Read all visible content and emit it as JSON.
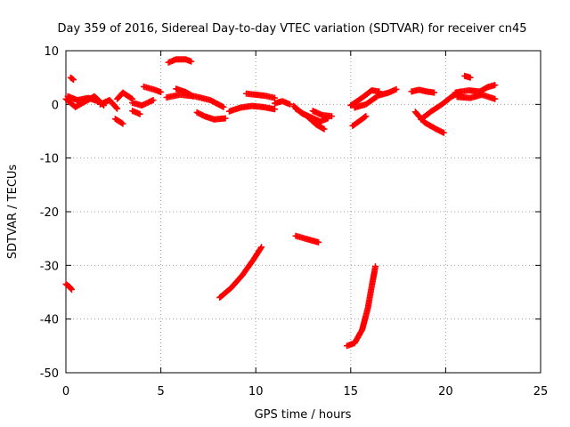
{
  "chart_data": {
    "type": "scatter",
    "title": "Day 359 of 2016, Sidereal Day-to-day VTEC variation (SDTVAR) for receiver cn45",
    "xlabel": "GPS time / hours",
    "ylabel": "SDTVAR / TECUs",
    "xlim": [
      0,
      25
    ],
    "ylim": [
      -50,
      10
    ],
    "xticks": [
      0,
      5,
      10,
      15,
      20,
      25
    ],
    "yticks": [
      10,
      0,
      -10,
      -20,
      -30,
      -40,
      -50
    ],
    "grid": true,
    "marker": "plus",
    "color": "#ff0000",
    "segments": [
      {
        "name": "s01",
        "points": [
          [
            0.0,
            1.0
          ],
          [
            0.5,
            -0.5
          ],
          [
            1.0,
            0.5
          ],
          [
            1.5,
            1.5
          ],
          [
            2.0,
            -0.2
          ]
        ]
      },
      {
        "name": "s02",
        "points": [
          [
            0.1,
            1.5
          ],
          [
            0.6,
            0.8
          ],
          [
            1.2,
            1.2
          ],
          [
            1.8,
            0.4
          ]
        ]
      },
      {
        "name": "s03",
        "points": [
          [
            0.25,
            5.0
          ],
          [
            0.4,
            4.6
          ]
        ]
      },
      {
        "name": "s04",
        "points": [
          [
            1.8,
            0.0
          ],
          [
            2.3,
            0.8
          ],
          [
            2.7,
            -0.8
          ]
        ]
      },
      {
        "name": "s05",
        "points": [
          [
            2.6,
            -2.7
          ],
          [
            3.0,
            -3.6
          ]
        ]
      },
      {
        "name": "s06",
        "points": [
          [
            2.7,
            1.0
          ],
          [
            3.0,
            2.2
          ],
          [
            3.5,
            1.0
          ]
        ]
      },
      {
        "name": "s07",
        "points": [
          [
            3.5,
            0.3
          ],
          [
            4.0,
            -0.2
          ],
          [
            4.6,
            0.8
          ]
        ]
      },
      {
        "name": "s08",
        "points": [
          [
            3.5,
            -1.2
          ],
          [
            3.9,
            -1.8
          ]
        ]
      },
      {
        "name": "s09",
        "points": [
          [
            4.1,
            3.3
          ],
          [
            4.6,
            2.8
          ],
          [
            5.0,
            2.3
          ]
        ]
      },
      {
        "name": "s10",
        "points": [
          [
            5.3,
            1.3
          ],
          [
            6.0,
            1.8
          ],
          [
            6.8,
            1.5
          ],
          [
            7.6,
            0.8
          ],
          [
            8.3,
            -0.5
          ]
        ]
      },
      {
        "name": "s11",
        "points": [
          [
            5.4,
            7.8
          ],
          [
            5.8,
            8.4
          ],
          [
            6.3,
            8.4
          ],
          [
            6.6,
            8.0
          ]
        ]
      },
      {
        "name": "s12",
        "points": [
          [
            5.8,
            2.9
          ],
          [
            6.3,
            2.3
          ],
          [
            6.7,
            1.5
          ]
        ]
      },
      {
        "name": "s13",
        "points": [
          [
            6.9,
            -1.5
          ],
          [
            7.3,
            -2.2
          ],
          [
            7.8,
            -2.8
          ],
          [
            8.4,
            -2.6
          ]
        ]
      },
      {
        "name": "s14",
        "points": [
          [
            8.6,
            -1.3
          ],
          [
            9.2,
            -0.6
          ],
          [
            9.8,
            -0.3
          ],
          [
            10.4,
            -0.5
          ],
          [
            11.0,
            -0.9
          ]
        ]
      },
      {
        "name": "s15",
        "points": [
          [
            9.5,
            2.0
          ],
          [
            10.0,
            1.8
          ],
          [
            10.5,
            1.6
          ],
          [
            11.0,
            1.2
          ]
        ]
      },
      {
        "name": "s16",
        "points": [
          [
            11.0,
            0.2
          ],
          [
            11.4,
            0.6
          ],
          [
            11.8,
            0.0
          ]
        ]
      },
      {
        "name": "s17",
        "points": [
          [
            12.0,
            -0.3
          ],
          [
            12.4,
            -1.6
          ],
          [
            12.9,
            -2.4
          ],
          [
            13.4,
            -3.2
          ],
          [
            13.8,
            -2.6
          ]
        ]
      },
      {
        "name": "s18",
        "points": [
          [
            12.1,
            -0.8
          ],
          [
            12.7,
            -2.2
          ],
          [
            13.2,
            -3.8
          ],
          [
            13.6,
            -4.6
          ]
        ]
      },
      {
        "name": "s19",
        "points": [
          [
            13.0,
            -1.2
          ],
          [
            13.5,
            -2.0
          ],
          [
            14.0,
            -2.2
          ]
        ]
      },
      {
        "name": "s20",
        "points": [
          [
            15.0,
            -0.2
          ],
          [
            15.3,
            0.5
          ],
          [
            15.7,
            1.5
          ],
          [
            16.1,
            2.6
          ],
          [
            16.5,
            2.4
          ]
        ]
      },
      {
        "name": "s21",
        "points": [
          [
            15.2,
            -0.6
          ],
          [
            15.8,
            0.0
          ],
          [
            16.4,
            1.5
          ]
        ]
      },
      {
        "name": "s22",
        "points": [
          [
            15.1,
            -4.0
          ],
          [
            15.5,
            -3.0
          ],
          [
            15.8,
            -2.2
          ]
        ]
      },
      {
        "name": "s23",
        "points": [
          [
            16.4,
            1.6
          ],
          [
            17.0,
            2.2
          ],
          [
            17.4,
            2.8
          ]
        ]
      },
      {
        "name": "s24",
        "points": [
          [
            18.2,
            2.4
          ],
          [
            18.6,
            2.7
          ],
          [
            19.0,
            2.4
          ],
          [
            19.4,
            2.2
          ]
        ]
      },
      {
        "name": "s25",
        "points": [
          [
            18.4,
            -1.4
          ],
          [
            18.9,
            -3.4
          ],
          [
            19.5,
            -4.6
          ],
          [
            19.9,
            -5.3
          ]
        ]
      },
      {
        "name": "s26",
        "points": [
          [
            18.7,
            -2.8
          ],
          [
            19.2,
            -1.4
          ],
          [
            19.8,
            0.0
          ],
          [
            20.3,
            1.4
          ],
          [
            20.8,
            2.4
          ]
        ]
      },
      {
        "name": "s27",
        "points": [
          [
            21.0,
            5.3
          ],
          [
            21.3,
            5.0
          ]
        ]
      },
      {
        "name": "s28",
        "points": [
          [
            20.5,
            2.2
          ],
          [
            21.2,
            2.6
          ],
          [
            21.8,
            2.4
          ],
          [
            22.2,
            3.2
          ],
          [
            22.6,
            3.6
          ]
        ]
      },
      {
        "name": "s29",
        "points": [
          [
            20.6,
            1.4
          ],
          [
            21.3,
            1.2
          ],
          [
            21.9,
            1.8
          ],
          [
            22.6,
            1.0
          ]
        ]
      },
      {
        "name": "s30",
        "points": [
          [
            0.0,
            -33.5
          ],
          [
            0.2,
            -34.0
          ],
          [
            0.3,
            -34.5
          ]
        ]
      },
      {
        "name": "s31",
        "points": [
          [
            8.1,
            -36.0
          ],
          [
            8.7,
            -34.2
          ],
          [
            9.3,
            -31.8
          ],
          [
            9.9,
            -28.8
          ],
          [
            10.3,
            -26.6
          ]
        ]
      },
      {
        "name": "s32",
        "points": [
          [
            12.1,
            -24.5
          ],
          [
            12.6,
            -25.0
          ],
          [
            13.0,
            -25.4
          ],
          [
            13.3,
            -25.7
          ]
        ]
      },
      {
        "name": "s33",
        "points": [
          [
            14.8,
            -45.0
          ],
          [
            15.2,
            -44.5
          ],
          [
            15.6,
            -42.0
          ],
          [
            15.9,
            -38.0
          ],
          [
            16.1,
            -34.0
          ],
          [
            16.3,
            -30.2
          ]
        ]
      }
    ]
  }
}
